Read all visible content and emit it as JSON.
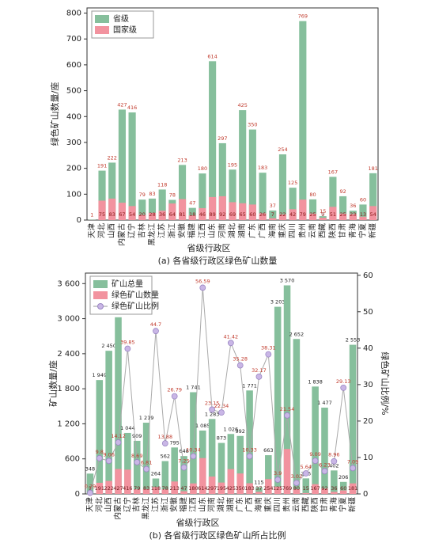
{
  "chart_data": [
    {
      "type": "bar",
      "title": "(a) 各省级行政区绿色矿山数量",
      "x_label": "省级行政区",
      "y_label": "绿色矿山数量/座",
      "categories": [
        "天津",
        "河北",
        "山西",
        "内蒙古",
        "辽宁",
        "吉林",
        "黑龙江",
        "江苏",
        "浙江",
        "安徽",
        "福建",
        "江西",
        "山东",
        "河南",
        "湖北",
        "湖南",
        "广东",
        "广西",
        "海南",
        "重庆",
        "四川",
        "贵州",
        "云南",
        "西藏",
        "陕西",
        "甘肃",
        "青海",
        "宁夏",
        "新疆"
      ],
      "series": [
        {
          "name": "省级",
          "color": "#86bf9c",
          "values": [
            1,
            191,
            222,
            427,
            416,
            79,
            83,
            118,
            78,
            213,
            47,
            180,
            614,
            297,
            195,
            425,
            350,
            183,
            37,
            254,
            125,
            769,
            80,
            15,
            167,
            92,
            36,
            60,
            181
          ]
        },
        {
          "name": "国家级",
          "color": "#f2939f",
          "values": [
            null,
            75,
            83,
            67,
            54,
            20,
            28,
            36,
            64,
            81,
            18,
            46,
            89,
            92,
            69,
            65,
            60,
            26,
            7,
            22,
            42,
            79,
            25,
            9,
            51,
            25,
            23,
            13,
            54
          ]
        }
      ],
      "ylim": [
        0,
        820
      ],
      "yticks": [
        0,
        100,
        200,
        300,
        400,
        500,
        600,
        700,
        800
      ],
      "legend": "upper-left"
    },
    {
      "type": "combo",
      "title": "(b) 各省级行政区绿色矿山所占比例",
      "x_label": "省级行政区",
      "y_label": "矿山数量/座",
      "y2_label": "绿色矿山比例/%",
      "categories": [
        "天津",
        "河北",
        "山西",
        "内蒙古",
        "辽宁",
        "吉林",
        "黑龙江",
        "江苏",
        "浙江",
        "安徽",
        "福建",
        "江西",
        "山东",
        "河南",
        "湖北",
        "湖南",
        "广东",
        "广西",
        "海南",
        "重庆",
        "四川",
        "贵州",
        "云南",
        "西藏",
        "陕西",
        "甘肃",
        "青海",
        "宁夏",
        "新疆"
      ],
      "series": [
        {
          "name": "矿山总量",
          "color": "#86bf9c",
          "values": [
            348,
            1949,
            2450,
            3024,
            1044,
            909,
            1219,
            264,
            562,
            795,
            648,
            1741,
            1085,
            1283,
            873,
            1026,
            992,
            1771,
            115,
            663,
            3203,
            3570,
            2652,
            266,
            1838,
            1477,
            402,
            206,
            2553
          ],
          "value_labels": [
            "348",
            "1 949",
            "2 450",
            "3 024",
            "1 044",
            "909",
            "1 219",
            "264",
            "562",
            "795",
            "648",
            "1 741",
            "1 085",
            "1 283",
            "873",
            "1 026",
            "992",
            "1 771",
            "115",
            "663",
            "3 203",
            "3 570",
            "2 652",
            "266",
            "1 838",
            "1 477",
            "402",
            "206",
            "2 553"
          ]
        },
        {
          "name": "绿色矿山数量",
          "color": "#f2939f",
          "values": [
            1,
            191,
            222,
            427,
            416,
            79,
            83,
            118,
            78,
            213,
            47,
            180,
            614,
            297,
            195,
            425,
            350,
            183,
            37,
            254,
            125,
            769,
            80,
            15,
            167,
            92,
            36,
            60,
            181
          ]
        },
        {
          "name": "绿色矿山比例",
          "color": "#c9b6e6",
          "axis": "y2",
          "values": [
            0.29,
            9.8,
            9.06,
            14.12,
            39.85,
            8.69,
            6.81,
            44.7,
            13.88,
            26.79,
            7.25,
            10.34,
            56.59,
            23.15,
            22.34,
            41.42,
            35.28,
            10.33,
            32.17,
            38.31,
            3.9,
            21.54,
            3.02,
            5.64,
            9.09,
            6.23,
            8.96,
            29.13,
            7.09
          ]
        }
      ],
      "ylim": [
        0,
        3780
      ],
      "yticks": [
        0,
        600,
        {
          "value": 1200,
          "label": "1 200"
        },
        {
          "value": 1800,
          "label": "1 800"
        },
        {
          "value": 2400,
          "label": "2 400"
        },
        {
          "value": 3000,
          "label": "3 000"
        },
        {
          "value": 3600,
          "label": "3 600"
        }
      ],
      "y2lim": [
        0,
        60.6
      ],
      "y2ticks": [
        0,
        10,
        20,
        30,
        40,
        50,
        60
      ],
      "legend": "upper-left"
    }
  ]
}
